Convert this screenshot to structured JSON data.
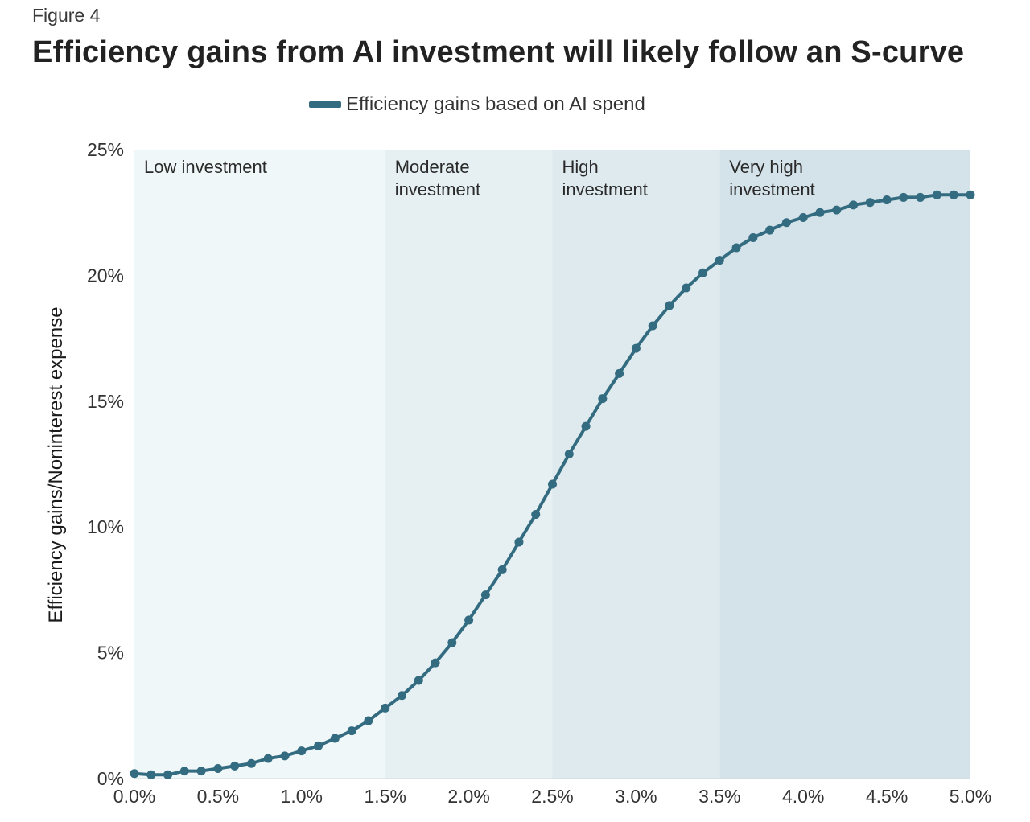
{
  "figure_label": "Figure 4",
  "chart_data": {
    "type": "line",
    "title": "Efficiency gains from AI investment will likely follow an S-curve",
    "legend": [
      "Efficiency gains based on AI spend"
    ],
    "legend_position": "top-center",
    "xlabel": "",
    "ylabel": "Efficiency gains/Noninterest expense",
    "xlim": [
      0,
      5
    ],
    "ylim": [
      0,
      25
    ],
    "x_ticks": [
      "0.0%",
      "0.5%",
      "1.0%",
      "1.5%",
      "2.0%",
      "2.5%",
      "3.0%",
      "3.5%",
      "4.0%",
      "4.5%",
      "5.0%"
    ],
    "y_ticks": [
      "0%",
      "5%",
      "10%",
      "15%",
      "20%",
      "25%"
    ],
    "grid": false,
    "regions": [
      {
        "label_lines": [
          "Low investment"
        ],
        "x_start": 0,
        "x_end": 1.5,
        "color": "#f0f7f8"
      },
      {
        "label_lines": [
          "Moderate",
          "investment"
        ],
        "x_start": 1.5,
        "x_end": 2.5,
        "color": "#e6f0f3"
      },
      {
        "label_lines": [
          "High",
          "investment"
        ],
        "x_start": 2.5,
        "x_end": 3.5,
        "color": "#deeaee"
      },
      {
        "label_lines": [
          "Very high",
          "investment"
        ],
        "x_start": 3.5,
        "x_end": 5.0,
        "color": "#d4e3e9"
      }
    ],
    "series": [
      {
        "name": "Efficiency gains based on AI spend",
        "color": "#336b80",
        "x": [
          0.0,
          0.1,
          0.2,
          0.3,
          0.4,
          0.5,
          0.6,
          0.7,
          0.8,
          0.9,
          1.0,
          1.1,
          1.2,
          1.3,
          1.4,
          1.5,
          1.6,
          1.7,
          1.8,
          1.9,
          2.0,
          2.1,
          2.2,
          2.3,
          2.4,
          2.5,
          2.6,
          2.7,
          2.8,
          2.9,
          3.0,
          3.1,
          3.2,
          3.3,
          3.4,
          3.5,
          3.6,
          3.7,
          3.8,
          3.9,
          4.0,
          4.1,
          4.2,
          4.3,
          4.4,
          4.5,
          4.6,
          4.7,
          4.8,
          4.9,
          5.0
        ],
        "values": [
          0.2,
          0.15,
          0.15,
          0.3,
          0.3,
          0.4,
          0.5,
          0.6,
          0.8,
          0.9,
          1.1,
          1.3,
          1.6,
          1.9,
          2.3,
          2.8,
          3.3,
          3.9,
          4.6,
          5.4,
          6.3,
          7.3,
          8.3,
          9.4,
          10.5,
          11.7,
          12.9,
          14.0,
          15.1,
          16.1,
          17.1,
          18.0,
          18.8,
          19.5,
          20.1,
          20.6,
          21.1,
          21.5,
          21.8,
          22.1,
          22.3,
          22.5,
          22.6,
          22.8,
          22.9,
          23.0,
          23.1,
          23.1,
          23.2,
          23.2,
          23.2
        ]
      }
    ]
  }
}
